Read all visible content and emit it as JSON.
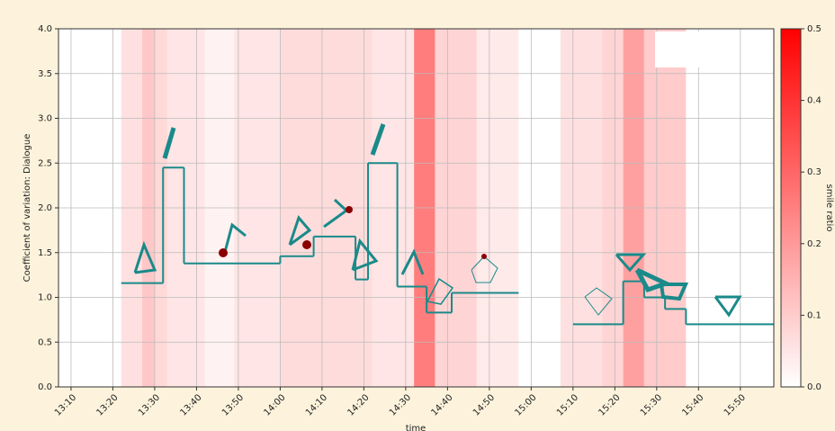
{
  "chart_data": {
    "type": "step",
    "x_label": "time",
    "y_label": "Coefficient of variation: Dialogue",
    "colorbar_label": "smile ratio",
    "xlim": [
      "13:07",
      "15:58"
    ],
    "xticks": [
      "13:10",
      "13:20",
      "13:30",
      "13:40",
      "13:50",
      "14:00",
      "14:10",
      "14:20",
      "14:30",
      "14:40",
      "14:50",
      "15:00",
      "15:10",
      "15:20",
      "15:30",
      "15:40",
      "15:50"
    ],
    "ylim": [
      0,
      4
    ],
    "yticks": [
      {
        "value": 0,
        "label": "0.0"
      },
      0.5,
      {
        "value": 1,
        "label": "1.0"
      },
      1.5,
      {
        "value": 2,
        "label": "2.0"
      },
      2.5,
      {
        "value": 3,
        "label": "3.0"
      },
      3.5,
      {
        "value": 4,
        "label": "4.0"
      }
    ],
    "grid": true,
    "series": [
      {
        "color": "#1a8a8a",
        "x": [
          "13:22",
          "13:32",
          "13:37",
          "14:00",
          "14:08",
          "14:18",
          "14:21",
          "14:28",
          "14:35",
          "14:41",
          "14:57",
          "15:10",
          "15:22",
          "15:27",
          "15:32",
          "15:37"
        ],
        "values": [
          1.16,
          2.45,
          1.38,
          1.46,
          1.68,
          1.2,
          2.5,
          1.12,
          0.83,
          1.05,
          null,
          0.7,
          1.18,
          1.0,
          0.87,
          0.7
        ]
      }
    ],
    "shading": {
      "start": [
        "13:22",
        "13:27",
        "13:30",
        "13:33",
        "13:42",
        "13:49",
        "14:00",
        "14:22",
        "14:32",
        "14:37",
        "14:47",
        "15:07",
        "15:17",
        "15:22",
        "15:27"
      ],
      "end": [
        "13:27",
        "13:30",
        "13:33",
        "13:42",
        "13:49",
        "14:00",
        "14:22",
        "14:32",
        "14:37",
        "14:47",
        "14:57",
        "15:17",
        "15:22",
        "15:27",
        "15:37"
      ],
      "values": [
        0.07,
        0.13,
        0.09,
        0.06,
        0.03,
        0.06,
        0.08,
        0.06,
        0.3,
        0.1,
        0.05,
        0.07,
        0.1,
        0.22,
        0.12
      ]
    },
    "clim": [
      0,
      0.5
    ],
    "colorbar_ticks": [
      {
        "value": 0,
        "label": "0.0"
      },
      0.1,
      0.2,
      0.3,
      0.4,
      0.5
    ]
  }
}
